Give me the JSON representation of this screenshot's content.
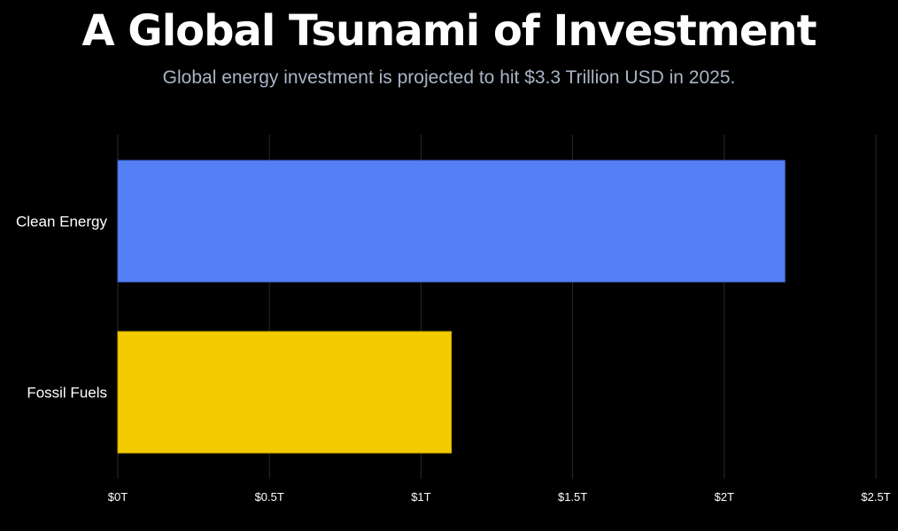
{
  "title": "A Global Tsunami of Investment",
  "subtitle": "Global energy investment is projected to hit $3.3 Trillion USD in 2025.",
  "chart_data": {
    "type": "bar",
    "orientation": "horizontal",
    "categories": [
      "Clean Energy",
      "Fossil Fuels"
    ],
    "values": [
      2.2,
      1.1
    ],
    "colors": [
      "#5580f5",
      "#f2cc00"
    ],
    "unit": "trillion USD",
    "xlim": [
      0,
      2.5
    ],
    "x_ticks": [
      0,
      0.5,
      1,
      1.5,
      2,
      2.5
    ],
    "x_tick_labels": [
      "$0T",
      "$0.5T",
      "$1T",
      "$1.5T",
      "$2T",
      "$2.5T"
    ],
    "grid": true,
    "xlabel": "",
    "ylabel": ""
  },
  "style": {
    "background": "#000000",
    "title_color": "#ffffff",
    "subtitle_color": "#a9b4c4",
    "grid_color": "#2a2a2a",
    "label_color": "#ffffff"
  }
}
